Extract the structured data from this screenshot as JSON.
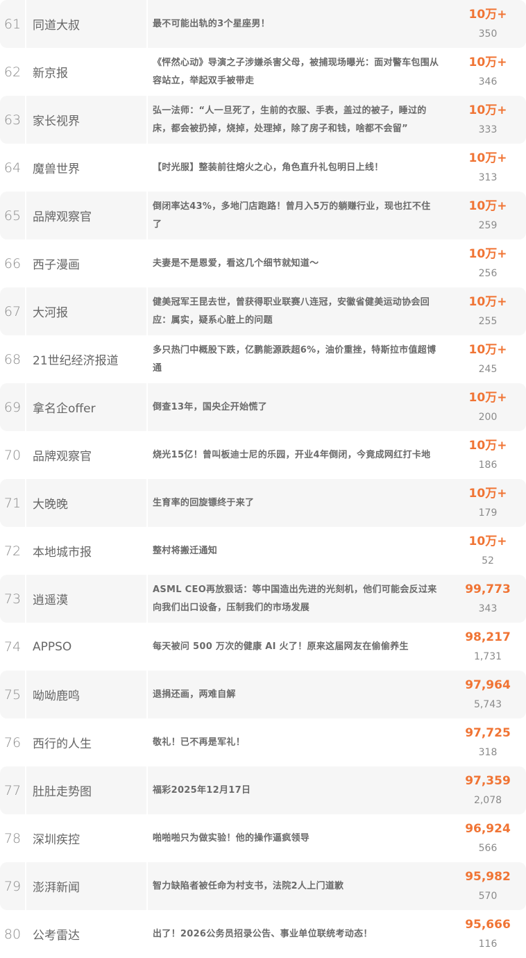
{
  "accent_color": "#f07434",
  "rows": [
    {
      "rank": "61",
      "account": "同道大叔",
      "title": "最不可能出轨的3个星座男！",
      "reads": "10万+",
      "likes": "350"
    },
    {
      "rank": "62",
      "account": "新京报",
      "title": "《怦然心动》导演之子涉嫌杀害父母，被捕现场曝光：面对警车包围从容站立，举起双手被带走",
      "reads": "10万+",
      "likes": "346"
    },
    {
      "rank": "63",
      "account": "家长视界",
      "title": "弘一法师：“人一旦死了，生前的衣服、手表，盖过的被子，睡过的床，都会被扔掉，烧掉，处理掉，除了房子和钱，啥都不会留”",
      "reads": "10万+",
      "likes": "333"
    },
    {
      "rank": "64",
      "account": "魔兽世界",
      "title": "【时光服】整装前往熔火之心，角色直升礼包明日上线！",
      "reads": "10万+",
      "likes": "313"
    },
    {
      "rank": "65",
      "account": "品牌观察官",
      "title": "倒闭率达43%，多地门店跑路！曾月入5万的躺赚行业，现也扛不住了",
      "reads": "10万+",
      "likes": "259"
    },
    {
      "rank": "66",
      "account": "西子漫画",
      "title": "夫妻是不是恩爱，看这几个细节就知道～",
      "reads": "10万+",
      "likes": "256"
    },
    {
      "rank": "67",
      "account": "大河报",
      "title": "健美冠军王昆去世，曾获得职业联赛八连冠，安徽省健美运动协会回应：属实，疑系心脏上的问题",
      "reads": "10万+",
      "likes": "255"
    },
    {
      "rank": "68",
      "account": "21世纪经济报道",
      "title": "多只热门中概股下跌，亿鹏能源跌超6%，油价重挫，特斯拉市值超博通",
      "reads": "10万+",
      "likes": "245"
    },
    {
      "rank": "69",
      "account": "拿名企offer",
      "title": "倒查13年，国央企开始慌了",
      "reads": "10万+",
      "likes": "200"
    },
    {
      "rank": "70",
      "account": "品牌观察官",
      "title": "烧光15亿！曾叫板迪士尼的乐园，开业4年倒闭，今竟成网红打卡地",
      "reads": "10万+",
      "likes": "186"
    },
    {
      "rank": "71",
      "account": "大晚晚",
      "title": "生育率的回旋镖终于来了",
      "reads": "10万+",
      "likes": "179"
    },
    {
      "rank": "72",
      "account": "本地城市报",
      "title": "整村将搬迁通知",
      "reads": "10万+",
      "likes": "52"
    },
    {
      "rank": "73",
      "account": "逍遥漠",
      "title": "ASML CEO再放狠话：等中国造出先进的光刻机，他们可能会反过来向我们出口设备，压制我们的市场发展",
      "reads": "99,773",
      "likes": "343"
    },
    {
      "rank": "74",
      "account": "APPSO",
      "title": "每天被问 500 万次的健康 AI 火了！原来这届网友在偷偷养生",
      "reads": "98,217",
      "likes": "1,731"
    },
    {
      "rank": "75",
      "account": "呦呦鹿鸣",
      "title": "退捐还画，两难自解",
      "reads": "97,964",
      "likes": "5,743"
    },
    {
      "rank": "76",
      "account": "西行的人生",
      "title": "敬礼！已不再是军礼！",
      "reads": "97,725",
      "likes": "318"
    },
    {
      "rank": "77",
      "account": "肚肚走势图",
      "title": "福彩2025年12月17日",
      "reads": "97,359",
      "likes": "2,078"
    },
    {
      "rank": "78",
      "account": "深圳疾控",
      "title": "啪啪啪只为做实验！他的操作逼疯领导",
      "reads": "96,924",
      "likes": "566"
    },
    {
      "rank": "79",
      "account": "澎湃新闻",
      "title": "智力缺陷者被任命为村支书，法院2人上门道歉",
      "reads": "95,982",
      "likes": "570"
    },
    {
      "rank": "80",
      "account": "公考雷达",
      "title": "出了！2026公务员招录公告、事业单位联统考动态！",
      "reads": "95,666",
      "likes": "116"
    }
  ]
}
